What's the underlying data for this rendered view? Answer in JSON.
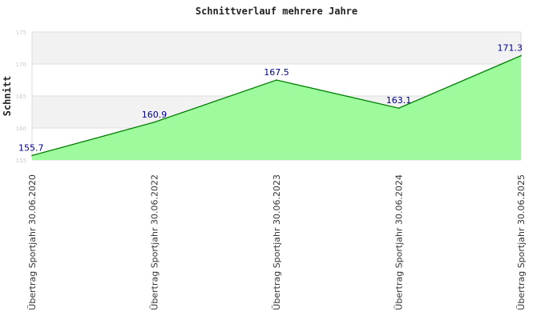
{
  "chart_data": {
    "type": "area",
    "title": "Schnittverlauf mehrere Jahre",
    "xlabel": "",
    "ylabel": "Schnitt",
    "ylim": [
      155,
      175
    ],
    "yticks": [
      155,
      160,
      165,
      170,
      175
    ],
    "categories": [
      "Übertrag Sportjahr 30.06.2020",
      "Übertrag Sportjahr 30.06.2022",
      "Übertrag Sportjahr 30.06.2023",
      "Übertrag Sportjahr 30.06.2024",
      "Übertrag Sportjahr 30.06.2025"
    ],
    "values": [
      155.7,
      160.9,
      167.5,
      163.1,
      171.3
    ],
    "data_labels": [
      "155.7",
      "160.9",
      "167.5",
      "163.1",
      "171.3"
    ],
    "grid": true,
    "colors": {
      "fill": "#98fb98",
      "line": "#008000",
      "label": "#00008b",
      "band": "#f2f2f2"
    }
  }
}
